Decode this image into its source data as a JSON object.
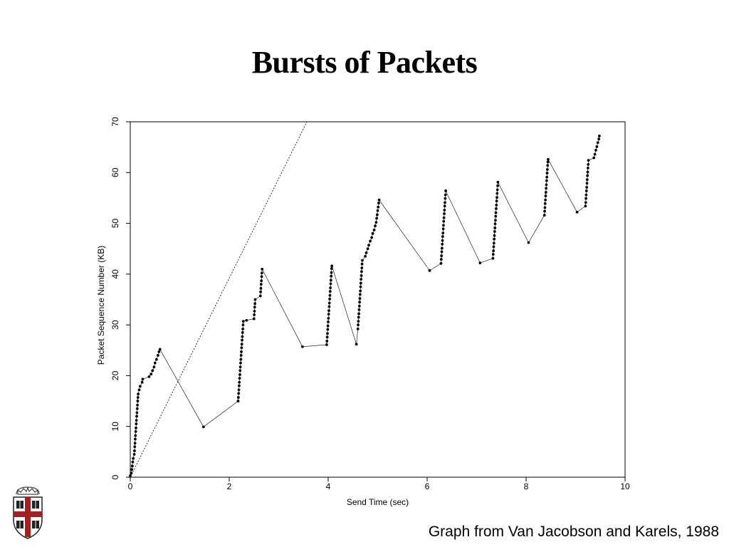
{
  "slide": {
    "title": "Bursts of Packets",
    "caption": "Graph from Van Jacobson and Karels, 1988"
  },
  "logo": {
    "name": "university-shield-logo"
  },
  "chart_data": {
    "type": "scatter",
    "title": "",
    "xlabel": "Send Time (sec)",
    "ylabel": "Packet Sequence Number (KB)",
    "xlim": [
      0,
      10
    ],
    "ylim": [
      0,
      70
    ],
    "xticks": [
      0,
      2,
      4,
      6,
      8,
      10
    ],
    "yticks": [
      0,
      10,
      20,
      30,
      40,
      50,
      60,
      70
    ],
    "grid": false,
    "series": [
      {
        "style": "points-connected",
        "color": "#000000",
        "points": [
          [
            0.0,
            0.3
          ],
          [
            0.02,
            0.8
          ],
          [
            0.03,
            1.5
          ],
          [
            0.04,
            2.2
          ],
          [
            0.05,
            3.0
          ],
          [
            0.06,
            3.7
          ],
          [
            0.08,
            4.5
          ],
          [
            0.085,
            5.2
          ],
          [
            0.09,
            6.0
          ],
          [
            0.095,
            6.7
          ],
          [
            0.1,
            7.5
          ],
          [
            0.105,
            8.2
          ],
          [
            0.11,
            9.0
          ],
          [
            0.115,
            9.7
          ],
          [
            0.12,
            10.5
          ],
          [
            0.125,
            11.2
          ],
          [
            0.13,
            12.0
          ],
          [
            0.135,
            12.7
          ],
          [
            0.14,
            13.5
          ],
          [
            0.145,
            14.2
          ],
          [
            0.15,
            15.0
          ],
          [
            0.155,
            15.7
          ],
          [
            0.16,
            16.4
          ],
          [
            0.18,
            17.2
          ],
          [
            0.2,
            17.9
          ],
          [
            0.24,
            18.7
          ],
          [
            0.25,
            19.3
          ],
          [
            0.38,
            19.8
          ],
          [
            0.42,
            20.3
          ],
          [
            0.45,
            21.0
          ],
          [
            0.48,
            21.7
          ],
          [
            0.5,
            22.5
          ],
          [
            0.53,
            23.2
          ],
          [
            0.56,
            24.0
          ],
          [
            0.58,
            24.7
          ],
          [
            0.6,
            25.2
          ],
          [
            1.48,
            9.9
          ],
          [
            2.18,
            15.0
          ],
          [
            2.185,
            15.7
          ],
          [
            2.19,
            16.5
          ],
          [
            2.195,
            17.2
          ],
          [
            2.2,
            18.0
          ],
          [
            2.205,
            18.7
          ],
          [
            2.21,
            19.5
          ],
          [
            2.215,
            20.2
          ],
          [
            2.22,
            21.0
          ],
          [
            2.225,
            21.7
          ],
          [
            2.23,
            22.5
          ],
          [
            2.235,
            23.2
          ],
          [
            2.24,
            24.0
          ],
          [
            2.245,
            24.7
          ],
          [
            2.25,
            25.5
          ],
          [
            2.255,
            26.2
          ],
          [
            2.26,
            27.0
          ],
          [
            2.265,
            27.7
          ],
          [
            2.27,
            28.5
          ],
          [
            2.275,
            29.2
          ],
          [
            2.28,
            30.0
          ],
          [
            2.285,
            30.7
          ],
          [
            2.35,
            30.9
          ],
          [
            2.5,
            31.2
          ],
          [
            2.505,
            32.0
          ],
          [
            2.51,
            32.7
          ],
          [
            2.515,
            33.5
          ],
          [
            2.52,
            34.2
          ],
          [
            2.525,
            35.0
          ],
          [
            2.63,
            35.7
          ],
          [
            2.635,
            36.5
          ],
          [
            2.64,
            37.2
          ],
          [
            2.645,
            38.0
          ],
          [
            2.65,
            38.7
          ],
          [
            2.655,
            39.5
          ],
          [
            2.66,
            40.2
          ],
          [
            2.665,
            41.0
          ],
          [
            3.48,
            25.7
          ],
          [
            3.97,
            26.1
          ],
          [
            3.975,
            26.8
          ],
          [
            3.98,
            27.6
          ],
          [
            3.985,
            28.3
          ],
          [
            3.99,
            29.1
          ],
          [
            3.995,
            29.8
          ],
          [
            4.0,
            30.6
          ],
          [
            4.005,
            31.3
          ],
          [
            4.01,
            32.1
          ],
          [
            4.015,
            32.8
          ],
          [
            4.02,
            33.6
          ],
          [
            4.025,
            34.3
          ],
          [
            4.03,
            35.1
          ],
          [
            4.035,
            35.8
          ],
          [
            4.04,
            36.6
          ],
          [
            4.045,
            37.3
          ],
          [
            4.05,
            38.1
          ],
          [
            4.055,
            38.8
          ],
          [
            4.06,
            39.6
          ],
          [
            4.065,
            40.3
          ],
          [
            4.07,
            41.1
          ],
          [
            4.075,
            41.6
          ],
          [
            4.57,
            26.2
          ],
          [
            4.6,
            29.2
          ],
          [
            4.605,
            30.0
          ],
          [
            4.61,
            30.7
          ],
          [
            4.615,
            31.5
          ],
          [
            4.62,
            32.2
          ],
          [
            4.625,
            33.0
          ],
          [
            4.63,
            33.7
          ],
          [
            4.635,
            34.5
          ],
          [
            4.64,
            35.2
          ],
          [
            4.645,
            36.0
          ],
          [
            4.65,
            36.7
          ],
          [
            4.655,
            37.5
          ],
          [
            4.66,
            38.2
          ],
          [
            4.665,
            39.0
          ],
          [
            4.67,
            39.7
          ],
          [
            4.675,
            40.5
          ],
          [
            4.68,
            41.2
          ],
          [
            4.685,
            42.0
          ],
          [
            4.69,
            42.7
          ],
          [
            4.75,
            43.5
          ],
          [
            4.77,
            44.2
          ],
          [
            4.8,
            45.0
          ],
          [
            4.82,
            45.7
          ],
          [
            4.85,
            46.5
          ],
          [
            4.88,
            47.2
          ],
          [
            4.9,
            48.0
          ],
          [
            4.93,
            48.7
          ],
          [
            4.95,
            49.5
          ],
          [
            4.97,
            50.2
          ],
          [
            4.98,
            51.0
          ],
          [
            4.99,
            51.7
          ],
          [
            5.0,
            52.5
          ],
          [
            5.01,
            53.2
          ],
          [
            5.02,
            54.0
          ],
          [
            5.03,
            54.6
          ],
          [
            6.05,
            40.7
          ],
          [
            6.28,
            42.1
          ],
          [
            6.285,
            42.9
          ],
          [
            6.29,
            43.6
          ],
          [
            6.295,
            44.4
          ],
          [
            6.3,
            45.1
          ],
          [
            6.305,
            45.9
          ],
          [
            6.31,
            46.6
          ],
          [
            6.315,
            47.4
          ],
          [
            6.32,
            48.1
          ],
          [
            6.325,
            48.9
          ],
          [
            6.33,
            49.6
          ],
          [
            6.335,
            50.4
          ],
          [
            6.34,
            51.1
          ],
          [
            6.345,
            51.9
          ],
          [
            6.35,
            52.6
          ],
          [
            6.355,
            53.4
          ],
          [
            6.36,
            54.1
          ],
          [
            6.365,
            54.9
          ],
          [
            6.37,
            55.6
          ],
          [
            6.375,
            56.4
          ],
          [
            7.07,
            42.2
          ],
          [
            7.33,
            43.1
          ],
          [
            7.335,
            43.9
          ],
          [
            7.34,
            44.6
          ],
          [
            7.345,
            45.4
          ],
          [
            7.35,
            46.1
          ],
          [
            7.355,
            46.9
          ],
          [
            7.36,
            47.6
          ],
          [
            7.365,
            48.4
          ],
          [
            7.37,
            49.1
          ],
          [
            7.375,
            49.9
          ],
          [
            7.38,
            50.6
          ],
          [
            7.385,
            51.4
          ],
          [
            7.39,
            52.1
          ],
          [
            7.395,
            52.9
          ],
          [
            7.4,
            53.6
          ],
          [
            7.405,
            54.4
          ],
          [
            7.41,
            55.1
          ],
          [
            7.415,
            55.9
          ],
          [
            7.42,
            56.6
          ],
          [
            7.425,
            57.4
          ],
          [
            7.43,
            58.1
          ],
          [
            8.05,
            46.2
          ],
          [
            8.37,
            51.6
          ],
          [
            8.375,
            52.4
          ],
          [
            8.38,
            53.1
          ],
          [
            8.385,
            53.9
          ],
          [
            8.39,
            54.6
          ],
          [
            8.395,
            55.4
          ],
          [
            8.4,
            56.1
          ],
          [
            8.405,
            56.9
          ],
          [
            8.41,
            57.6
          ],
          [
            8.415,
            58.4
          ],
          [
            8.42,
            59.1
          ],
          [
            8.425,
            59.9
          ],
          [
            8.43,
            60.6
          ],
          [
            8.435,
            61.4
          ],
          [
            8.44,
            62.1
          ],
          [
            8.445,
            62.6
          ],
          [
            9.03,
            52.2
          ],
          [
            9.2,
            53.4
          ],
          [
            9.205,
            54.1
          ],
          [
            9.21,
            54.9
          ],
          [
            9.215,
            55.6
          ],
          [
            9.22,
            56.4
          ],
          [
            9.225,
            57.1
          ],
          [
            9.23,
            57.9
          ],
          [
            9.235,
            58.6
          ],
          [
            9.24,
            59.4
          ],
          [
            9.245,
            60.1
          ],
          [
            9.25,
            60.9
          ],
          [
            9.255,
            61.6
          ],
          [
            9.26,
            62.4
          ],
          [
            9.37,
            62.9
          ],
          [
            9.39,
            63.6
          ],
          [
            9.41,
            64.4
          ],
          [
            9.43,
            65.1
          ],
          [
            9.45,
            65.9
          ],
          [
            9.47,
            66.6
          ],
          [
            9.48,
            67.2
          ]
        ]
      },
      {
        "style": "dashed-line",
        "color": "#000000",
        "points": [
          [
            0.0,
            0.0
          ],
          [
            3.57,
            70.0
          ]
        ]
      }
    ]
  }
}
